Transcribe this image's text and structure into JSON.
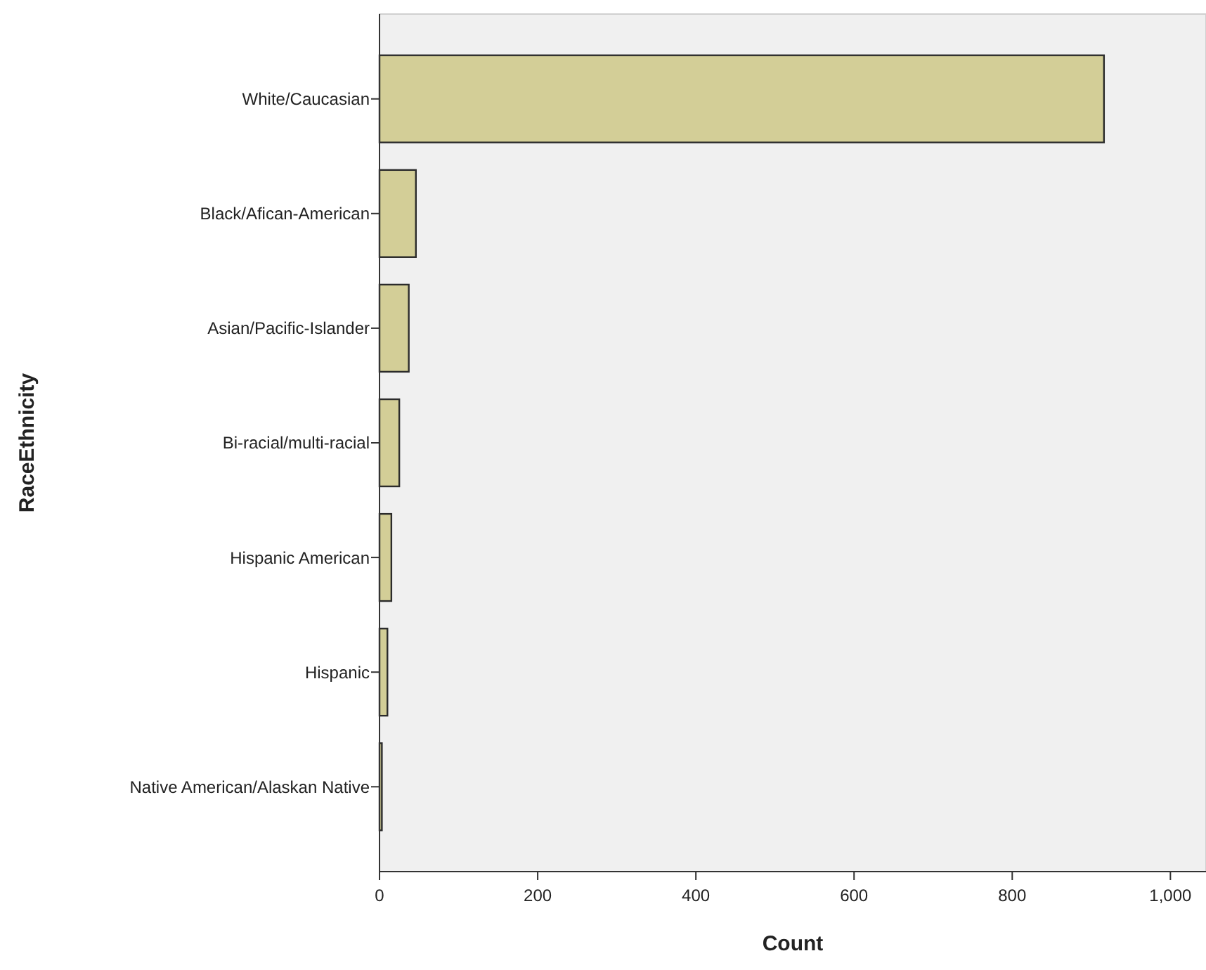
{
  "chart_data": {
    "type": "bar",
    "orientation": "horizontal",
    "xlabel": "Count",
    "ylabel": "RaceEthnicity",
    "categories": [
      "White/Caucasian",
      "Black/Afican-American",
      "Asian/Pacific-Islander",
      "Bi-racial/multi-racial",
      "Hispanic American",
      "Hispanic",
      "Native American/Alaskan Native"
    ],
    "values": [
      916,
      46,
      37,
      25,
      15,
      10,
      3
    ],
    "color": "#d3ce97",
    "xlim": [
      0,
      1045
    ],
    "xticks": [
      0,
      200,
      400,
      600,
      800,
      {
        "value": 1000,
        "label": "1,000"
      }
    ],
    "grid": false
  }
}
